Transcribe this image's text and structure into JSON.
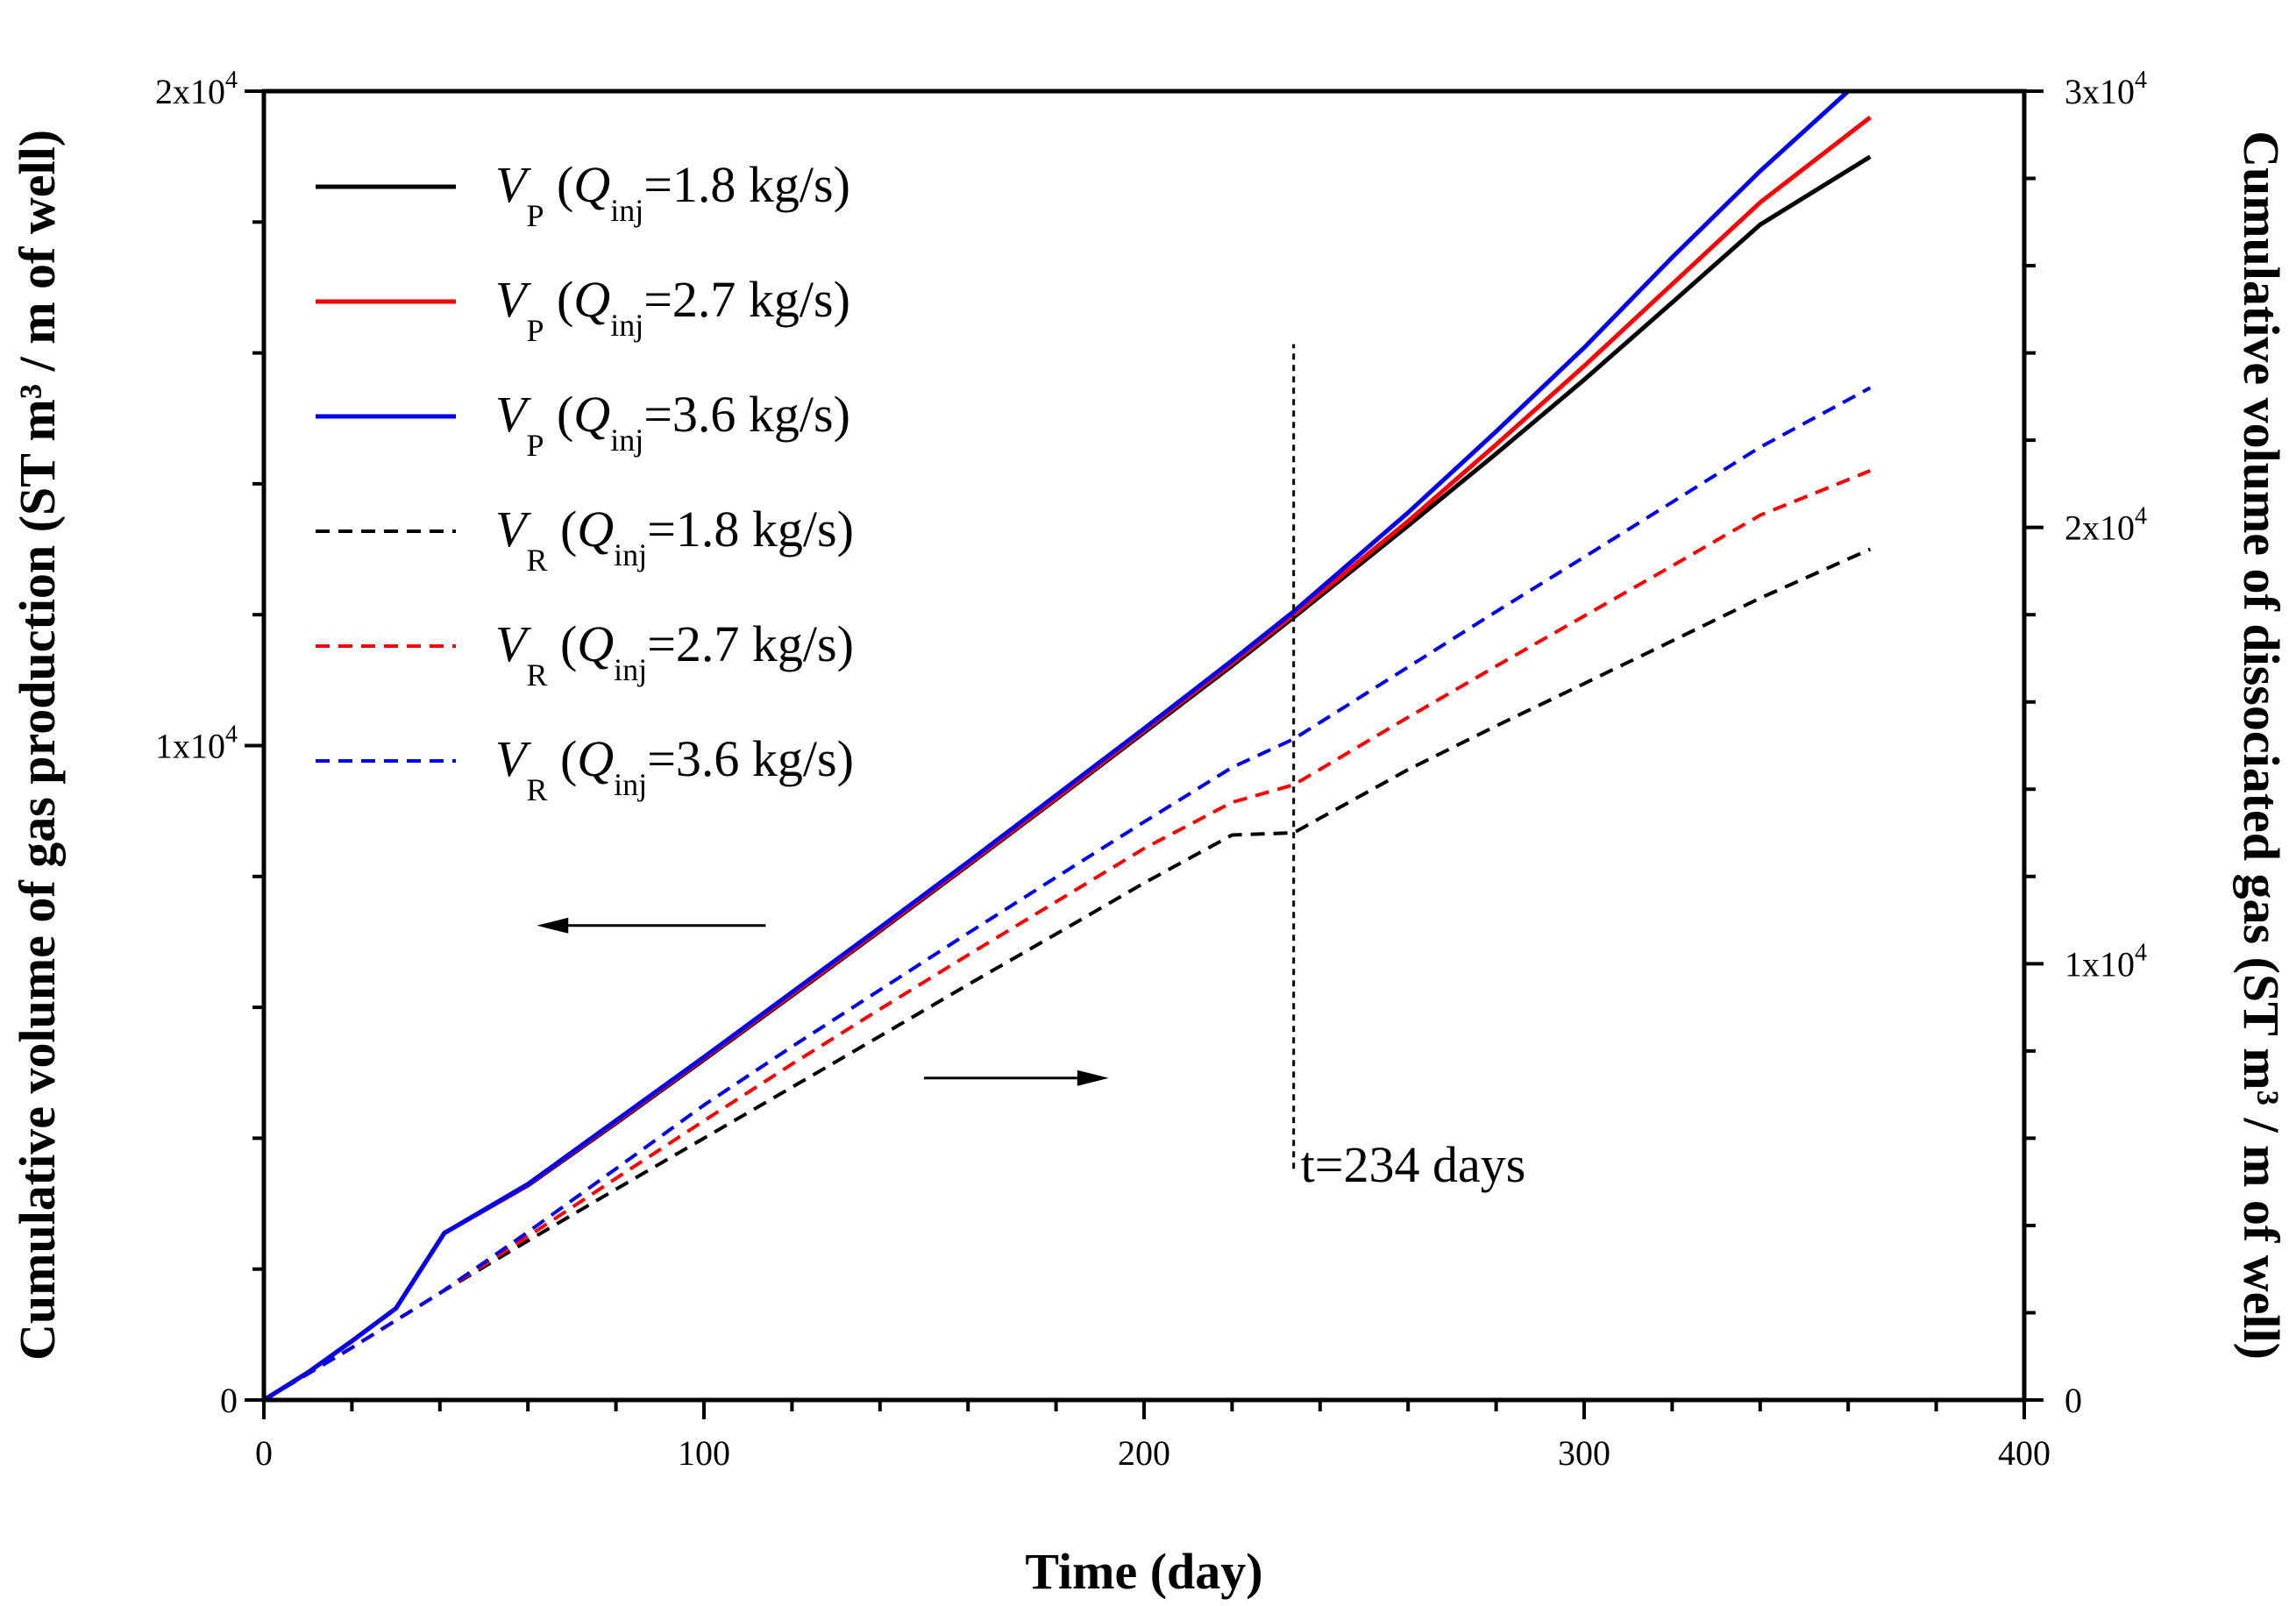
{
  "chart_data": {
    "type": "line",
    "title": "",
    "xlabel": "Time (day)",
    "ylabel_left": "Cumulative volume of gas production (ST m³ / m of well)",
    "ylabel_right": "Cumulative volume of dissociated gas (ST m³ / m of well)",
    "xlim": [
      0,
      400
    ],
    "ylim_left": [
      0,
      20000
    ],
    "ylim_right": [
      0,
      30000
    ],
    "x_ticks": [
      0,
      100,
      200,
      300,
      400
    ],
    "x_tick_labels": [
      "0",
      "100",
      "200",
      "300",
      "400"
    ],
    "y_left_ticks": [
      0,
      10000,
      20000
    ],
    "y_left_tick_labels": [
      {
        "base": "0",
        "exp": ""
      },
      {
        "base": "1x10",
        "exp": "4"
      },
      {
        "base": "2x10",
        "exp": "4"
      }
    ],
    "y_right_ticks": [
      0,
      10000,
      20000,
      30000
    ],
    "y_right_tick_labels": [
      {
        "base": "0",
        "exp": ""
      },
      {
        "base": "1x10",
        "exp": "4"
      },
      {
        "base": "2x10",
        "exp": "4"
      },
      {
        "base": "3x10",
        "exp": "4"
      }
    ],
    "series": [
      {
        "name": "VP (Qinj=1.8 kg/s)",
        "sym": "V",
        "sub": "P",
        "q": "Q",
        "qsub": "inj",
        "val": "=1.8 kg/s",
        "axis": "left",
        "color": "#000000",
        "dash": "solid",
        "x": [
          0,
          10,
          20,
          30,
          41,
          60,
          80,
          100,
          120,
          140,
          160,
          180,
          200,
          220,
          234,
          260,
          280,
          300,
          320,
          340,
          365
        ],
        "y": [
          0,
          420,
          900,
          1400,
          2550,
          3280,
          4230,
          5200,
          6180,
          7170,
          8170,
          9180,
          10200,
          11220,
          11960,
          13360,
          14460,
          15590,
          16770,
          17960,
          19000
        ]
      },
      {
        "name": "VP (Qinj=2.7 kg/s)",
        "sym": "V",
        "sub": "P",
        "q": "Q",
        "qsub": "inj",
        "val": "=2.7 kg/s",
        "axis": "left",
        "color": "#ff0000",
        "dash": "solid",
        "x": [
          0,
          10,
          20,
          30,
          41,
          60,
          80,
          100,
          120,
          140,
          160,
          180,
          200,
          220,
          234,
          260,
          280,
          300,
          320,
          340,
          365
        ],
        "y": [
          0,
          420,
          900,
          1400,
          2550,
          3290,
          4250,
          5220,
          6200,
          7190,
          8190,
          9200,
          10230,
          11260,
          12000,
          13430,
          14600,
          15800,
          17050,
          18300,
          19600
        ]
      },
      {
        "name": "VP (Qinj=3.6 kg/s)",
        "sym": "V",
        "sub": "P",
        "q": "Q",
        "qsub": "inj",
        "val": "=3.6 kg/s",
        "axis": "left",
        "color": "#0000ee",
        "dash": "solid",
        "x": [
          0,
          10,
          20,
          30,
          41,
          60,
          80,
          100,
          120,
          140,
          160,
          180,
          200,
          220,
          234,
          260,
          280,
          300,
          320,
          340,
          360
        ],
        "y": [
          0,
          420,
          900,
          1400,
          2550,
          3300,
          4270,
          5240,
          6230,
          7220,
          8220,
          9240,
          10260,
          11300,
          12050,
          13560,
          14800,
          16080,
          17460,
          18780,
          20000
        ]
      },
      {
        "name": "VR (Qinj=1.8 kg/s)",
        "sym": "V",
        "sub": "R",
        "q": "Q",
        "qsub": "inj",
        "val": "=1.8 kg/s",
        "axis": "right",
        "color": "#000000",
        "dash": "dashed",
        "x": [
          0,
          20,
          40,
          60,
          80,
          100,
          120,
          140,
          160,
          180,
          200,
          220,
          234,
          260,
          280,
          300,
          320,
          340,
          365
        ],
        "y": [
          0,
          1200,
          2450,
          3650,
          4830,
          6000,
          7170,
          8340,
          9520,
          10680,
          11850,
          12950,
          13000,
          14450,
          15450,
          16420,
          17400,
          18380,
          19500
        ]
      },
      {
        "name": "VR (Qinj=2.7 kg/s)",
        "sym": "V",
        "sub": "R",
        "q": "Q",
        "qsub": "inj",
        "val": "=2.7 kg/s",
        "axis": "right",
        "color": "#ff0000",
        "dash": "dashed",
        "x": [
          0,
          20,
          40,
          60,
          80,
          100,
          120,
          140,
          160,
          180,
          200,
          220,
          234,
          260,
          280,
          300,
          320,
          340,
          365
        ],
        "y": [
          0,
          1200,
          2450,
          3750,
          5080,
          6400,
          7700,
          8960,
          10200,
          11420,
          12640,
          13700,
          14100,
          15650,
          16820,
          17970,
          19120,
          20280,
          21300
        ]
      },
      {
        "name": "VR (Qinj=3.6 kg/s)",
        "sym": "V",
        "sub": "R",
        "q": "Q",
        "qsub": "inj",
        "val": "=3.6 kg/s",
        "axis": "right",
        "color": "#0000ee",
        "dash": "dashed",
        "x": [
          0,
          20,
          40,
          60,
          80,
          100,
          120,
          140,
          160,
          180,
          200,
          220,
          234,
          260,
          280,
          300,
          320,
          340,
          365
        ],
        "y": [
          0,
          1200,
          2450,
          3850,
          5300,
          6760,
          8100,
          9400,
          10700,
          11980,
          13250,
          14500,
          15150,
          16800,
          18070,
          19320,
          20580,
          21840,
          23200
        ]
      }
    ],
    "annotations": {
      "vline_x": 234,
      "vline_y_range": [
        5300,
        24200
      ],
      "label": "t=234 days"
    },
    "arrows": [
      {
        "points_to": "left axis",
        "x_from": 114,
        "x_to": 62,
        "y_left": 7250
      },
      {
        "points_to": "right axis",
        "x_from": 150,
        "x_to": 192,
        "y_left": 4920
      }
    ],
    "legend_placement": "top-left"
  }
}
